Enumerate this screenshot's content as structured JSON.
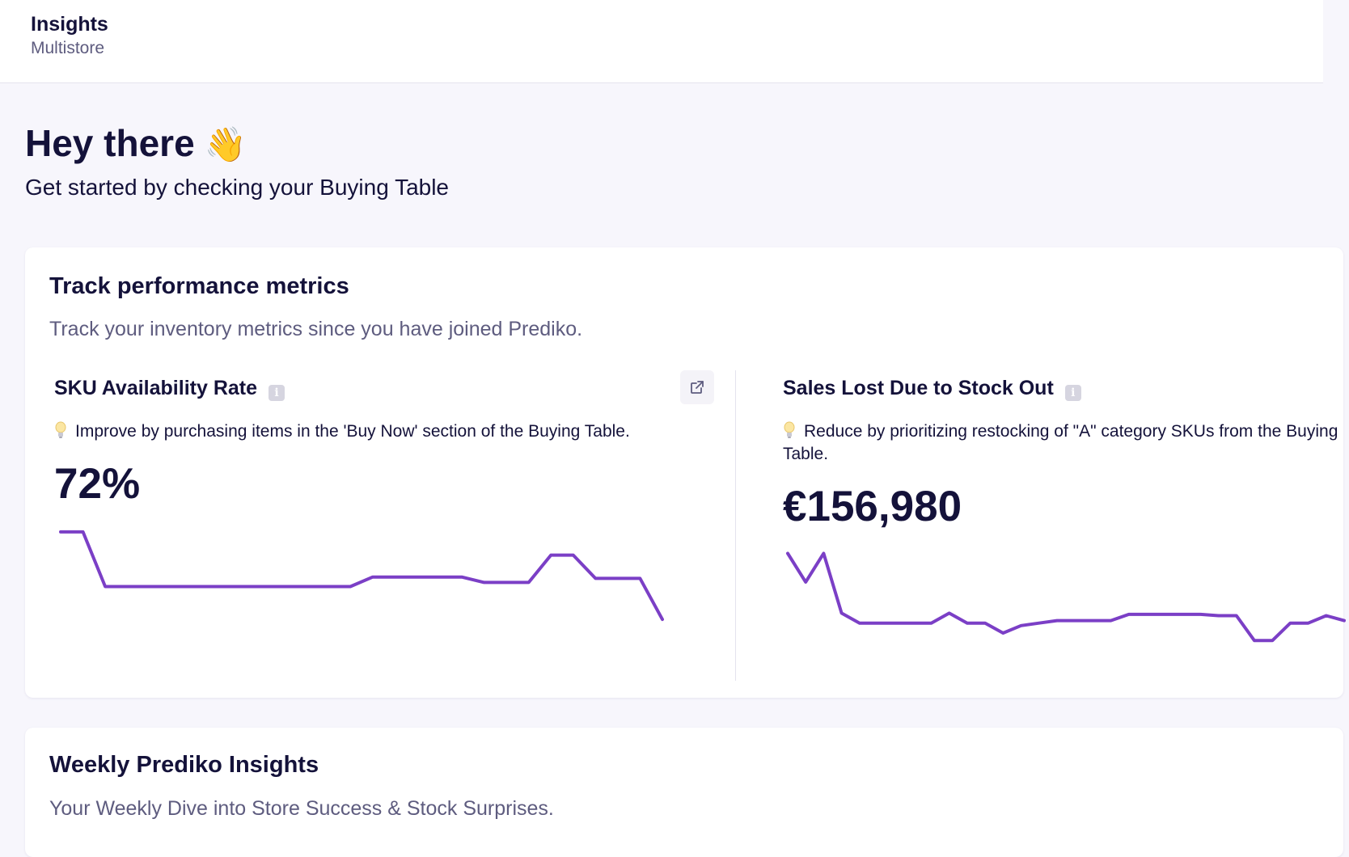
{
  "header": {
    "title": "Insights",
    "subtitle": "Multistore"
  },
  "greeting": {
    "headline": "Hey there",
    "emoji": "👋",
    "subtitle": "Get started by checking your Buying Table"
  },
  "performance_card": {
    "title": "Track performance metrics",
    "description": "Track your inventory metrics since you have joined Prediko.",
    "metrics": [
      {
        "title": "SKU Availability Rate",
        "tip": "Improve by purchasing items in the 'Buy Now' section of the Buying Table.",
        "value": "72%",
        "has_external_link": true,
        "trend": [
          90,
          90,
          50,
          50,
          50,
          50,
          50,
          50,
          50,
          50,
          50,
          50,
          50,
          50,
          57,
          57,
          57,
          57,
          57,
          53,
          53,
          53,
          73,
          73,
          56,
          56,
          56,
          26
        ]
      },
      {
        "title": "Sales Lost Due to Stock Out",
        "tip": "Reduce by prioritizing restocking of \"A\" category SKUs from the Buying Table.",
        "value": "€156,980",
        "has_external_link": false,
        "trend": [
          88,
          65,
          88,
          40,
          32,
          32,
          32,
          32,
          32,
          40,
          32,
          32,
          24,
          30,
          32,
          34,
          34,
          34,
          34,
          39,
          39,
          39,
          39,
          39,
          38,
          38,
          18,
          18,
          32,
          32,
          38,
          34
        ]
      }
    ]
  },
  "weekly_card": {
    "title": "Weekly Prediko Insights",
    "description": "Your Weekly Dive into Store Success & Stock Surprises."
  },
  "colors": {
    "accent_line": "#7b3fc6",
    "text_primary": "#14123a",
    "text_muted": "#5e5c7f",
    "background": "#f7f6fc"
  },
  "icons": {
    "info": "info-icon",
    "external": "external-link-icon",
    "tip": "lightbulb-icon"
  }
}
